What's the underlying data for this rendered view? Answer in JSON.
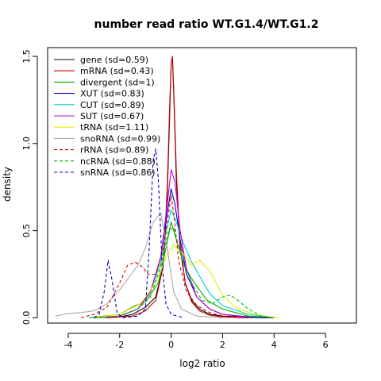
{
  "chart_data": {
    "type": "line",
    "title": "number read ratio WT.G1.4/WT.G1.2",
    "xlabel": "log2 ratio",
    "ylabel": "density",
    "xlim": [
      -4.8,
      7.2
    ],
    "ylim": [
      -0.03,
      1.55
    ],
    "x_ticks": [
      -4,
      -2,
      0,
      2,
      4,
      6
    ],
    "x_tick_labels": [
      "-4",
      "-2",
      "0",
      "2",
      "4",
      "6"
    ],
    "y_ticks": [
      0.0,
      0.5,
      1.0,
      1.5
    ],
    "y_tick_labels": [
      "0.0",
      "0.5",
      "1.0",
      "1.5"
    ],
    "grid": false,
    "legend_position": "top-left",
    "series": [
      {
        "name": "gene (sd=0.59)",
        "color": "#000000",
        "dashed": false,
        "points": [
          [
            -3.0,
            0
          ],
          [
            -2.0,
            0.005
          ],
          [
            -1.5,
            0.02
          ],
          [
            -1.0,
            0.06
          ],
          [
            -0.6,
            0.12
          ],
          [
            -0.3,
            0.3
          ],
          [
            -0.15,
            0.7
          ],
          [
            -0.05,
            1.2
          ],
          [
            0.0,
            1.45
          ],
          [
            0.05,
            1.5
          ],
          [
            0.1,
            1.3
          ],
          [
            0.2,
            0.8
          ],
          [
            0.35,
            0.4
          ],
          [
            0.55,
            0.2
          ],
          [
            0.8,
            0.1
          ],
          [
            1.1,
            0.05
          ],
          [
            1.5,
            0.02
          ],
          [
            2.0,
            0.01
          ],
          [
            3.0,
            0.003
          ],
          [
            4.0,
            0
          ]
        ]
      },
      {
        "name": "mRNA (sd=0.43)",
        "color": "#cc0000",
        "dashed": false,
        "points": [
          [
            -2.5,
            0
          ],
          [
            -1.5,
            0.01
          ],
          [
            -1.0,
            0.04
          ],
          [
            -0.6,
            0.1
          ],
          [
            -0.3,
            0.3
          ],
          [
            -0.15,
            0.75
          ],
          [
            -0.05,
            1.25
          ],
          [
            0.0,
            1.45
          ],
          [
            0.05,
            1.5
          ],
          [
            0.1,
            1.32
          ],
          [
            0.2,
            0.85
          ],
          [
            0.35,
            0.42
          ],
          [
            0.55,
            0.2
          ],
          [
            0.8,
            0.09
          ],
          [
            1.1,
            0.04
          ],
          [
            1.5,
            0.015
          ],
          [
            2.0,
            0.005
          ],
          [
            3.0,
            0
          ]
        ]
      },
      {
        "name": "divergent (sd=1)",
        "color": "#00aa00",
        "dashed": false,
        "points": [
          [
            -3.2,
            0
          ],
          [
            -2.0,
            0.02
          ],
          [
            -1.4,
            0.07
          ],
          [
            -1.0,
            0.09
          ],
          [
            -0.5,
            0.2
          ],
          [
            -0.2,
            0.4
          ],
          [
            0.0,
            0.55
          ],
          [
            0.2,
            0.45
          ],
          [
            0.5,
            0.3
          ],
          [
            0.9,
            0.2
          ],
          [
            1.4,
            0.1
          ],
          [
            2.0,
            0.05
          ],
          [
            3.0,
            0.01
          ],
          [
            4.0,
            0
          ]
        ]
      },
      {
        "name": "XUT (sd=0.83)",
        "color": "#0000cc",
        "dashed": false,
        "points": [
          [
            -3.0,
            0
          ],
          [
            -2.0,
            0.01
          ],
          [
            -1.3,
            0.05
          ],
          [
            -0.8,
            0.15
          ],
          [
            -0.4,
            0.35
          ],
          [
            -0.15,
            0.6
          ],
          [
            0.0,
            0.74
          ],
          [
            0.15,
            0.65
          ],
          [
            0.35,
            0.45
          ],
          [
            0.6,
            0.25
          ],
          [
            1.0,
            0.12
          ],
          [
            1.5,
            0.05
          ],
          [
            2.0,
            0.02
          ],
          [
            3.0,
            0.005
          ],
          [
            4.0,
            0
          ]
        ]
      },
      {
        "name": "CUT (sd=0.89)",
        "color": "#00cccc",
        "dashed": false,
        "points": [
          [
            -3.0,
            0
          ],
          [
            -2.0,
            0.01
          ],
          [
            -1.3,
            0.05
          ],
          [
            -0.8,
            0.15
          ],
          [
            -0.4,
            0.32
          ],
          [
            -0.15,
            0.52
          ],
          [
            0.0,
            0.62
          ],
          [
            0.2,
            0.55
          ],
          [
            0.5,
            0.42
          ],
          [
            0.8,
            0.32
          ],
          [
            1.1,
            0.24
          ],
          [
            1.5,
            0.14
          ],
          [
            2.0,
            0.07
          ],
          [
            3.0,
            0.02
          ],
          [
            4.0,
            0
          ]
        ]
      },
      {
        "name": "SUT (sd=0.67)",
        "color": "#cc00cc",
        "dashed": false,
        "points": [
          [
            -3.0,
            0
          ],
          [
            -2.0,
            0.01
          ],
          [
            -1.3,
            0.05
          ],
          [
            -0.8,
            0.15
          ],
          [
            -0.4,
            0.35
          ],
          [
            -0.15,
            0.65
          ],
          [
            0.0,
            0.85
          ],
          [
            0.15,
            0.78
          ],
          [
            0.35,
            0.5
          ],
          [
            0.6,
            0.28
          ],
          [
            1.0,
            0.12
          ],
          [
            1.5,
            0.05
          ],
          [
            2.0,
            0.02
          ],
          [
            3.0,
            0
          ]
        ]
      },
      {
        "name": "tRNA (sd=1.11)",
        "color": "#eeee00",
        "dashed": false,
        "points": [
          [
            -3.0,
            0
          ],
          [
            -2.0,
            0.02
          ],
          [
            -1.2,
            0.08
          ],
          [
            -0.6,
            0.2
          ],
          [
            -0.2,
            0.35
          ],
          [
            0.1,
            0.42
          ],
          [
            0.5,
            0.36
          ],
          [
            0.8,
            0.3
          ],
          [
            1.1,
            0.33
          ],
          [
            1.5,
            0.27
          ],
          [
            2.0,
            0.13
          ],
          [
            2.5,
            0.06
          ],
          [
            3.2,
            0.02
          ],
          [
            4.2,
            0
          ]
        ]
      },
      {
        "name": "snoRNA (sd=0.99)",
        "color": "#aaaaaa",
        "dashed": false,
        "points": [
          [
            -4.5,
            0.01
          ],
          [
            -4.0,
            0.025
          ],
          [
            -3.5,
            0.03
          ],
          [
            -3.0,
            0.04
          ],
          [
            -2.5,
            0.08
          ],
          [
            -2.0,
            0.16
          ],
          [
            -1.6,
            0.24
          ],
          [
            -1.3,
            0.3
          ],
          [
            -1.0,
            0.4
          ],
          [
            -0.7,
            0.55
          ],
          [
            -0.4,
            0.6
          ],
          [
            -0.15,
            0.4
          ],
          [
            0.1,
            0.15
          ],
          [
            0.4,
            0.05
          ],
          [
            1.0,
            0.01
          ],
          [
            2.0,
            0
          ]
        ]
      },
      {
        "name": "rRNA (sd=0.89)",
        "color": "#dd0000",
        "dashed": true,
        "points": [
          [
            -3.5,
            0
          ],
          [
            -3.0,
            0.02
          ],
          [
            -2.5,
            0.06
          ],
          [
            -2.0,
            0.2
          ],
          [
            -1.7,
            0.3
          ],
          [
            -1.4,
            0.32
          ],
          [
            -1.1,
            0.29
          ],
          [
            -0.9,
            0.25
          ],
          [
            -0.6,
            0.25
          ],
          [
            -0.3,
            0.4
          ],
          [
            -0.1,
            0.6
          ],
          [
            0.0,
            0.7
          ],
          [
            0.1,
            0.6
          ],
          [
            0.3,
            0.32
          ],
          [
            0.6,
            0.15
          ],
          [
            1.0,
            0.07
          ],
          [
            1.5,
            0.03
          ],
          [
            2.0,
            0.01
          ],
          [
            3.0,
            0
          ]
        ]
      },
      {
        "name": "ncRNA (sd=0.88)",
        "color": "#00bb00",
        "dashed": true,
        "points": [
          [
            -3.0,
            0
          ],
          [
            -2.0,
            0.01
          ],
          [
            -1.3,
            0.05
          ],
          [
            -0.8,
            0.12
          ],
          [
            -0.4,
            0.3
          ],
          [
            -0.1,
            0.5
          ],
          [
            0.1,
            0.52
          ],
          [
            0.4,
            0.35
          ],
          [
            0.8,
            0.2
          ],
          [
            1.2,
            0.1
          ],
          [
            1.6,
            0.08
          ],
          [
            2.0,
            0.12
          ],
          [
            2.3,
            0.13
          ],
          [
            2.6,
            0.1
          ],
          [
            3.0,
            0.05
          ],
          [
            3.5,
            0.01
          ],
          [
            4.0,
            0
          ]
        ]
      },
      {
        "name": "snRNA (sd=0.86)",
        "color": "#0000cc",
        "dashed": true,
        "points": [
          [
            -3.0,
            0
          ],
          [
            -2.8,
            0.02
          ],
          [
            -2.6,
            0.15
          ],
          [
            -2.45,
            0.33
          ],
          [
            -2.3,
            0.22
          ],
          [
            -2.1,
            0.03
          ],
          [
            -1.9,
            0
          ],
          [
            -1.3,
            0.01
          ],
          [
            -1.0,
            0.05
          ],
          [
            -0.85,
            0.4
          ],
          [
            -0.7,
            0.9
          ],
          [
            -0.6,
            0.97
          ],
          [
            -0.5,
            0.8
          ],
          [
            -0.35,
            0.3
          ],
          [
            -0.2,
            0.08
          ],
          [
            0.0,
            0.02
          ],
          [
            0.5,
            0
          ]
        ]
      }
    ]
  }
}
